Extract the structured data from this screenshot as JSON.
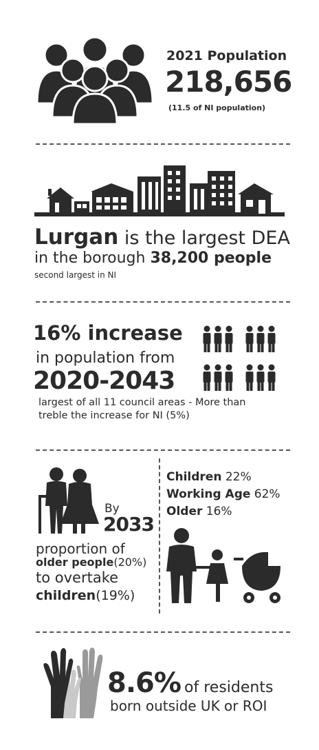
{
  "population": {
    "heading": "2021 Population",
    "value": "218,656",
    "note": "(11.5 of NI population)"
  },
  "dea": {
    "town": "Lurgan",
    "line1_rest": "is the largest DEA",
    "line2_a": "in the borough",
    "line2_b": "38,200 people",
    "line3": "second largest in NI"
  },
  "growth": {
    "headline": "16% increase",
    "line2": "in population from",
    "years": "2020-2043",
    "note_line1": "largest of all 11 council areas - More than",
    "note_line2": "treble the increase for NI (5%)"
  },
  "ageing": {
    "by": "By",
    "year": "2033",
    "line1": "proportion of",
    "line2_bold": "older people",
    "line2_rest": "(20%)",
    "line3": "to overtake",
    "line4_bold": "children",
    "line4_rest": "(19%)"
  },
  "age_groups": [
    {
      "label": "Children",
      "value": "22%"
    },
    {
      "label": "Working Age",
      "value": "62%"
    },
    {
      "label": "Older",
      "value": "16%"
    }
  ],
  "birthplace": {
    "percent": "8.6%",
    "line1_rest": "of residents",
    "line2": "born outside UK or ROI"
  },
  "colors": {
    "text": "#2b2b2b",
    "hand_light": "#c9c9c9",
    "hand_mid": "#9a9a9a"
  },
  "icons": [
    "people-group-icon",
    "skyline-icon",
    "person-grid-icon",
    "elderly-couple-icon",
    "family-pram-icon",
    "raised-hands-icon"
  ]
}
